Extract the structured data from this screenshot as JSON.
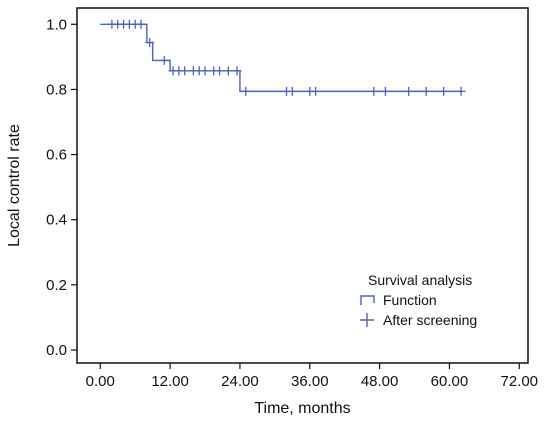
{
  "chart_data": {
    "type": "line",
    "xlabel": "Time, months",
    "ylabel": "Local control rate",
    "xlim": [
      -4,
      73.5
    ],
    "ylim": [
      -0.04,
      1.05
    ],
    "x_ticks": [
      0,
      12,
      24,
      36,
      48,
      60,
      72
    ],
    "x_tick_labels": [
      "0.00",
      "12.00",
      "24.00",
      "36.00",
      "48.00",
      "60.00",
      "72.00"
    ],
    "y_ticks": [
      0.0,
      0.2,
      0.4,
      0.6,
      0.8,
      1.0
    ],
    "y_tick_labels": [
      "0.0",
      "0.2",
      "0.4",
      "0.6",
      "0.8",
      "1.0"
    ],
    "grid": false,
    "legend": {
      "placement": "bottom-right",
      "title": "Survival analysis",
      "entries": [
        "Function",
        "After screening"
      ]
    },
    "series": [
      {
        "name": "Function",
        "kind": "step",
        "color": "#4a64b8",
        "x": [
          0,
          8,
          9,
          12,
          24,
          62
        ],
        "y": [
          1.0,
          0.944,
          0.889,
          0.857,
          0.794,
          0.794
        ]
      },
      {
        "name": "After screening",
        "kind": "censor-marks",
        "color": "#4a64b8",
        "x": [
          2,
          3,
          4,
          5,
          6,
          7,
          8.5,
          11,
          12.5,
          13.5,
          14.5,
          16,
          17,
          18,
          19.5,
          20.5,
          22,
          23.5,
          25,
          32,
          33,
          36,
          37,
          47,
          49,
          53,
          56,
          59,
          62
        ],
        "y": [
          1.0,
          1.0,
          1.0,
          1.0,
          1.0,
          1.0,
          0.944,
          0.889,
          0.857,
          0.857,
          0.857,
          0.857,
          0.857,
          0.857,
          0.857,
          0.857,
          0.857,
          0.857,
          0.794,
          0.794,
          0.794,
          0.794,
          0.794,
          0.794,
          0.794,
          0.794,
          0.794,
          0.794,
          0.794
        ]
      }
    ]
  }
}
